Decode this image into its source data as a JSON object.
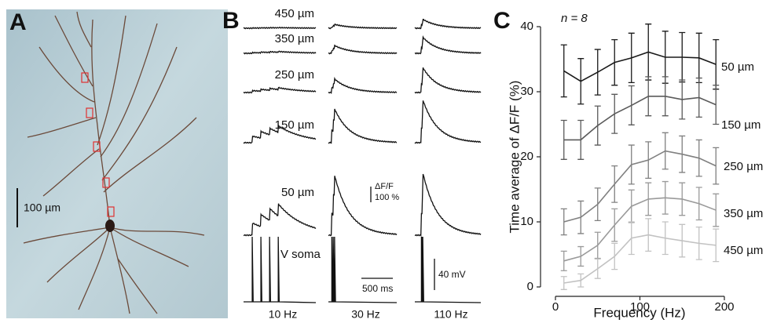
{
  "panels": {
    "A": {
      "label": "A",
      "scale_bar": "100 µm"
    },
    "B": {
      "label": "B",
      "rows": [
        "450 µm",
        "350 µm",
        "250 µm",
        "150 µm",
        "50 µm",
        "V soma"
      ],
      "columns": [
        "10 Hz",
        "30 Hz",
        "110 Hz"
      ],
      "scale_dff": "ΔF/F",
      "scale_dff_value": "100 %",
      "scale_mv": "40 mV",
      "scale_ms": "500 ms"
    }
  },
  "chart_data": {
    "type": "line",
    "label": "C",
    "annotation": "n = 8",
    "x_label": "Frequency (Hz)",
    "y_label": "Time average of ΔF/F (%)",
    "x": [
      10,
      30,
      50,
      70,
      90,
      110,
      130,
      150,
      170,
      190
    ],
    "xlim": [
      0,
      200
    ],
    "xticks": [
      0,
      100,
      200
    ],
    "ylim": [
      0,
      40
    ],
    "yticks": [
      0,
      10,
      20,
      30,
      40
    ],
    "series": [
      {
        "name": "50 µm",
        "color": "#1a1a1a",
        "values": [
          33.2,
          31.6,
          33,
          34.5,
          35.2,
          36.1,
          35.3,
          35.3,
          35.2,
          34.2
        ],
        "errors": [
          4,
          3.5,
          3.5,
          3.5,
          3.8,
          4.3,
          4,
          3.8,
          3.8,
          3.8
        ]
      },
      {
        "name": "150 µm",
        "color": "#5a5a5a",
        "values": [
          22.6,
          22.6,
          24.8,
          26.6,
          27.9,
          29.3,
          29.3,
          28.8,
          29.1,
          28
        ],
        "errors": [
          3,
          3,
          3,
          3,
          3,
          3,
          3,
          3,
          3,
          3
        ]
      },
      {
        "name": "250 µm",
        "color": "#808080",
        "values": [
          10,
          10.7,
          12.7,
          15.8,
          18.8,
          19.5,
          20.9,
          20.4,
          19.8,
          18.6
        ],
        "errors": [
          2,
          2.5,
          2.5,
          2.8,
          3,
          2.8,
          2.8,
          2.8,
          2.8,
          2.8
        ]
      },
      {
        "name": "350 µm",
        "color": "#9a9a9a",
        "values": [
          4,
          4.7,
          6.4,
          9.5,
          12.4,
          13.5,
          13.7,
          13.5,
          12.8,
          11.8
        ],
        "errors": [
          1.5,
          1.5,
          2,
          2.5,
          2.5,
          2.5,
          2.5,
          2.5,
          2.5,
          2.5
        ]
      },
      {
        "name": "450 µm",
        "color": "#c2c2c2",
        "values": [
          0.6,
          1,
          2.8,
          4.7,
          7.5,
          8,
          7.5,
          7.1,
          6.7,
          6.4
        ],
        "errors": [
          1,
          1,
          1.5,
          2,
          2.5,
          2.5,
          2.5,
          2.5,
          2.5,
          2.5
        ]
      }
    ]
  }
}
